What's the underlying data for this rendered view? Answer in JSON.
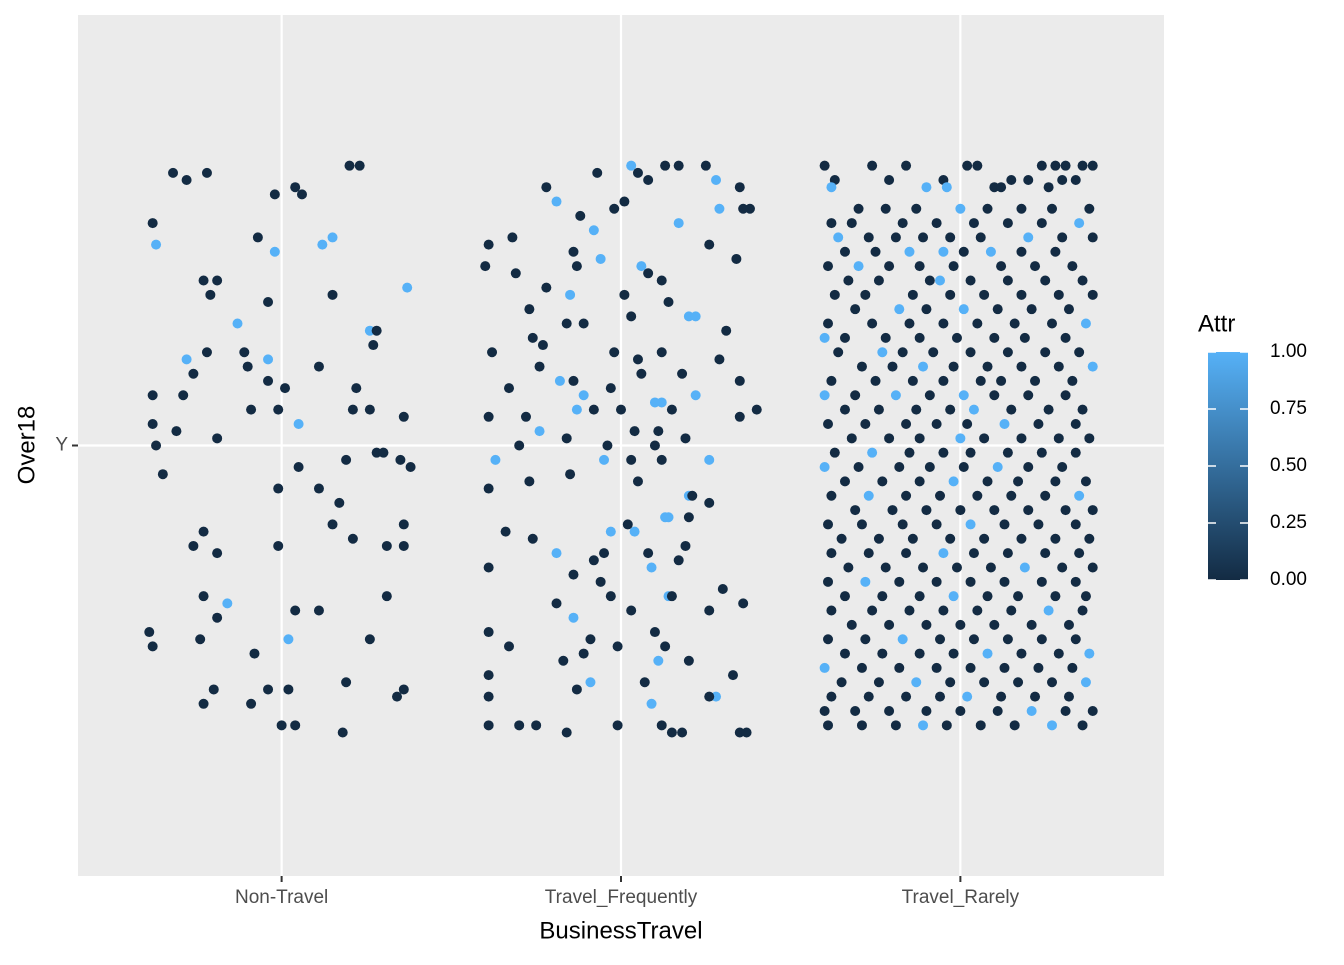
{
  "chart_data": {
    "type": "scatter",
    "x_label": "BusinessTravel",
    "y_label": "Over18",
    "xlim": [
      0.4,
      3.6
    ],
    "ylim": [
      0.4,
      1.6
    ],
    "xticks": [
      {
        "value": 1,
        "label": "Non-Travel"
      },
      {
        "value": 2,
        "label": "Travel_Frequently"
      },
      {
        "value": 3,
        "label": "Travel_Rarely"
      }
    ],
    "yticks": [
      {
        "value": 1,
        "label": "Y"
      }
    ],
    "grid": true,
    "legend": {
      "title": "Attr",
      "position": "right",
      "limits": [
        0,
        1
      ],
      "low_color": "#132B43",
      "high_color": "#56B1F7",
      "ticks": [
        {
          "value": 0,
          "label": "0.00"
        },
        {
          "value": 0.25,
          "label": "0.25"
        },
        {
          "value": 0.5,
          "label": "0.50"
        },
        {
          "value": 0.75,
          "label": "0.75"
        },
        {
          "value": 1,
          "label": "1.00"
        }
      ]
    },
    "x": [
      0.68,
      0.72,
      0.78,
      1.2,
      1.23,
      0.98,
      1.04,
      1.06,
      0.62,
      0.63,
      0.93,
      0.98,
      1.12,
      1.15,
      0.77,
      0.81,
      0.79,
      1.15,
      1.37,
      0.96,
      0.87,
      1.26,
      1.28,
      0.72,
      0.78,
      0.89,
      0.96,
      0.9,
      1.11,
      1.27,
      0.74,
      0.96,
      0.62,
      0.71,
      1.01,
      1.22,
      0.62,
      0.91,
      0.99,
      1.05,
      1.21,
      1.26,
      1.36,
      0.69,
      0.63,
      0.81,
      0.65,
      1.28,
      1.3,
      1.35,
      1.38,
      1.05,
      1.19,
      0.99,
      1.11,
      1.17,
      1.15,
      1.21,
      0.77,
      0.74,
      0.81,
      0.99,
      1.36,
      1.31,
      1.36,
      1.31,
      0.77,
      0.84,
      1.04,
      1.11,
      0.61,
      0.62,
      0.76,
      0.81,
      1.02,
      1.26,
      0.92,
      1.19,
      0.8,
      0.96,
      1.02,
      1.34,
      1.36,
      0.77,
      0.91,
      1.0,
      1.04,
      1.18,
      1.81,
      1.92,
      1.94,
      1.85,
      2.03,
      2.28,
      2.29,
      2.17,
      2.06,
      2.2,
      2.22,
      1.82,
      1.89,
      1.87,
      2.12,
      2.1,
      2.22,
      1.76,
      1.95,
      2.26,
      1.63,
      2.2,
      2.13,
      2.14,
      2.04,
      1.97,
      1.81,
      2.09,
      2.14,
      2.11,
      1.91,
      2.09,
      2.28,
      1.86,
      1.78,
      1.93,
      2.13,
      2.17,
      2.25,
      2.05,
      2.08,
      2.35,
      1.88,
      1.98,
      2.01,
      2.38,
      2.36,
      1.61,
      1.68,
      1.6,
      1.69,
      1.86,
      1.87,
      2.26,
      2.34,
      2.08,
      2.12,
      1.78,
      2.01,
      1.73,
      1.84,
      1.89,
      2.03,
      2.14,
      2.31,
      1.74,
      1.77,
      1.62,
      1.98,
      2.12,
      2.05,
      2.29,
      1.76,
      2.06,
      2.18,
      1.67,
      1.86,
      1.97,
      2.35,
      2.4,
      2.15,
      2.0,
      1.92,
      1.61,
      1.72,
      2.04,
      2.11,
      2.19,
      2.35,
      1.7,
      1.84,
      2.1,
      1.96,
      2.03,
      2.12,
      1.61,
      1.73,
      1.85,
      2.05,
      2.21,
      2.26,
      1.66,
      1.74,
      2.02,
      2.2,
      1.61,
      1.92,
      1.95,
      2.08,
      2.17,
      2.19,
      1.86,
      1.94,
      2.15,
      2.3,
      2.36,
      1.81,
      1.97,
      2.03,
      2.26,
      1.61,
      1.67,
      1.91,
      1.99,
      2.1,
      2.13,
      1.83,
      1.89,
      2.2,
      2.33,
      1.61,
      1.61,
      1.87,
      2.07,
      2.26,
      1.61,
      1.7,
      1.75,
      1.84,
      1.99,
      2.12,
      2.15,
      2.18,
      2.35,
      2.37,
      2.6,
      2.74,
      2.84,
      3.02,
      3.05,
      3.24,
      3.28,
      3.31,
      3.36,
      3.39,
      2.63,
      2.79,
      2.95,
      3.15,
      3.2,
      3.3,
      3.34,
      2.62,
      2.9,
      2.96,
      3.1,
      3.12,
      3.26,
      2.7,
      2.78,
      2.87,
      3.0,
      3.08,
      3.18,
      3.27,
      3.38,
      2.62,
      2.68,
      2.83,
      2.93,
      3.04,
      3.14,
      3.24,
      3.35,
      2.64,
      2.73,
      2.81,
      2.89,
      2.97,
      3.06,
      3.2,
      3.3,
      3.39,
      2.66,
      2.75,
      2.85,
      2.95,
      3.01,
      3.09,
      3.18,
      3.28,
      2.61,
      2.7,
      2.79,
      2.88,
      2.98,
      3.12,
      3.22,
      3.33,
      2.67,
      2.76,
      2.91,
      2.94,
      3.03,
      3.14,
      3.25,
      3.36,
      2.63,
      2.72,
      2.86,
      2.97,
      3.07,
      3.18,
      3.29,
      3.39,
      2.69,
      2.82,
      2.9,
      3.01,
      3.11,
      3.21,
      3.32,
      2.61,
      2.74,
      2.85,
      2.95,
      3.05,
      3.16,
      3.27,
      3.37,
      2.6,
      2.66,
      2.78,
      2.88,
      2.99,
      3.1,
      3.19,
      3.31,
      2.64,
      2.77,
      2.83,
      2.92,
      3.03,
      3.14,
      3.25,
      3.35,
      2.71,
      2.8,
      2.89,
      2.98,
      3.08,
      3.18,
      3.29,
      3.39,
      2.62,
      2.75,
      2.86,
      2.95,
      3.06,
      3.12,
      3.22,
      3.33,
      2.6,
      2.69,
      2.81,
      2.91,
      3.01,
      3.1,
      3.2,
      3.31,
      2.66,
      2.76,
      2.87,
      2.97,
      3.04,
      3.15,
      3.26,
      3.36,
      2.61,
      2.72,
      2.84,
      2.93,
      3.02,
      3.13,
      3.23,
      3.34,
      2.68,
      2.79,
      2.88,
      3.0,
      3.07,
      3.18,
      3.29,
      3.38,
      2.63,
      2.74,
      2.85,
      2.95,
      3.03,
      3.14,
      3.24,
      3.34,
      2.6,
      2.7,
      2.82,
      2.91,
      3.01,
      3.11,
      3.2,
      3.3,
      2.66,
      2.77,
      2.88,
      2.98,
      3.08,
      3.17,
      3.28,
      3.37,
      2.62,
      2.73,
      2.84,
      2.94,
      3.05,
      3.15,
      3.25,
      3.35,
      2.69,
      2.8,
      2.9,
      3.0,
      3.1,
      3.2,
      3.31,
      3.39,
      2.61,
      2.71,
      2.83,
      2.93,
      3.03,
      3.13,
      3.23,
      3.34,
      2.65,
      2.76,
      2.86,
      2.97,
      3.07,
      3.18,
      3.28,
      3.38,
      2.62,
      2.73,
      2.84,
      2.95,
      3.04,
      3.14,
      3.25,
      3.35,
      2.67,
      2.78,
      2.89,
      2.99,
      3.09,
      3.19,
      3.3,
      3.39,
      2.61,
      2.72,
      2.82,
      2.93,
      3.03,
      3.13,
      3.24,
      3.34,
      2.66,
      2.77,
      2.88,
      2.98,
      3.08,
      3.17,
      3.28,
      3.37,
      2.62,
      2.74,
      2.85,
      2.95,
      3.05,
      3.15,
      3.26,
      3.36,
      2.68,
      2.79,
      2.9,
      3.0,
      3.1,
      3.21,
      3.32,
      2.61,
      2.72,
      2.83,
      2.94,
      3.04,
      3.14,
      3.24,
      3.34,
      2.66,
      2.77,
      2.88,
      2.98,
      3.08,
      3.18,
      3.29,
      3.38,
      2.6,
      2.71,
      2.82,
      2.93,
      3.03,
      3.13,
      3.23,
      3.33,
      2.65,
      2.76,
      2.87,
      2.97,
      3.07,
      3.17,
      3.27,
      3.37,
      2.62,
      2.73,
      2.84,
      2.94,
      3.02,
      3.12,
      3.22,
      3.32,
      2.6,
      2.69,
      2.79,
      2.9,
      3.0,
      3.11,
      3.21,
      3.31,
      3.39,
      2.61,
      2.71,
      2.81,
      2.89,
      2.96,
      3.06,
      3.16,
      3.27,
      3.36
    ],
    "y": [
      1.38,
      1.37,
      1.38,
      1.39,
      1.39,
      1.35,
      1.36,
      1.35,
      1.31,
      1.28,
      1.29,
      1.27,
      1.28,
      1.29,
      1.23,
      1.23,
      1.21,
      1.21,
      1.22,
      1.2,
      1.17,
      1.16,
      1.16,
      1.12,
      1.13,
      1.13,
      1.12,
      1.11,
      1.11,
      1.14,
      1.1,
      1.09,
      1.07,
      1.07,
      1.08,
      1.08,
      1.03,
      1.05,
      1.05,
      1.03,
      1.05,
      1.05,
      1.04,
      1.02,
      1.0,
      1.01,
      0.96,
      0.99,
      0.99,
      0.98,
      0.97,
      0.97,
      0.98,
      0.94,
      0.94,
      0.92,
      0.89,
      0.87,
      0.88,
      0.86,
      0.85,
      0.86,
      0.89,
      0.86,
      0.86,
      0.79,
      0.79,
      0.78,
      0.77,
      0.77,
      0.74,
      0.72,
      0.73,
      0.76,
      0.73,
      0.73,
      0.71,
      0.67,
      0.66,
      0.66,
      0.66,
      0.65,
      0.66,
      0.64,
      0.64,
      0.61,
      0.61,
      0.6,
      1.34,
      1.3,
      1.26,
      1.21,
      1.39,
      1.37,
      1.33,
      1.31,
      1.25,
      1.18,
      1.18,
      1.09,
      1.07,
      1.05,
      1.06,
      1.06,
      1.07,
      1.02,
      0.98,
      0.98,
      0.98,
      0.93,
      0.9,
      0.9,
      0.88,
      0.88,
      0.85,
      0.83,
      0.79,
      0.7,
      0.67,
      0.64,
      0.65,
      0.76,
      1.36,
      1.38,
      1.39,
      1.39,
      1.39,
      1.38,
      1.37,
      1.36,
      1.32,
      1.33,
      1.34,
      1.33,
      1.33,
      1.28,
      1.29,
      1.25,
      1.24,
      1.27,
      1.25,
      1.28,
      1.26,
      1.24,
      1.23,
      1.22,
      1.21,
      1.19,
      1.17,
      1.17,
      1.18,
      1.2,
      1.16,
      1.15,
      1.14,
      1.13,
      1.13,
      1.13,
      1.12,
      1.12,
      1.11,
      1.1,
      1.1,
      1.08,
      1.09,
      1.08,
      1.09,
      1.05,
      1.05,
      1.05,
      1.05,
      1.04,
      1.04,
      1.02,
      1.02,
      1.01,
      1.04,
      1.0,
      1.01,
      1.0,
      1.0,
      0.98,
      0.98,
      0.94,
      0.95,
      0.96,
      0.95,
      0.93,
      0.92,
      0.88,
      0.87,
      0.89,
      0.9,
      0.83,
      0.84,
      0.85,
      0.85,
      0.84,
      0.86,
      0.82,
      0.81,
      0.79,
      0.8,
      0.78,
      0.78,
      0.79,
      0.77,
      0.77,
      0.74,
      0.72,
      0.73,
      0.72,
      0.74,
      0.72,
      0.7,
      0.71,
      0.7,
      0.68,
      0.68,
      0.65,
      0.66,
      0.67,
      0.65,
      0.61,
      0.61,
      0.61,
      0.6,
      0.61,
      0.61,
      0.6,
      0.6,
      0.6,
      0.6,
      1.39,
      1.39,
      1.39,
      1.39,
      1.39,
      1.39,
      1.39,
      1.39,
      1.39,
      1.39,
      1.37,
      1.37,
      1.37,
      1.37,
      1.37,
      1.37,
      1.37,
      1.36,
      1.36,
      1.36,
      1.36,
      1.36,
      1.36,
      1.33,
      1.33,
      1.33,
      1.33,
      1.33,
      1.33,
      1.33,
      1.33,
      1.31,
      1.31,
      1.31,
      1.31,
      1.31,
      1.31,
      1.31,
      1.31,
      1.29,
      1.29,
      1.29,
      1.29,
      1.29,
      1.29,
      1.29,
      1.29,
      1.29,
      1.27,
      1.27,
      1.27,
      1.27,
      1.27,
      1.27,
      1.27,
      1.27,
      1.25,
      1.25,
      1.25,
      1.25,
      1.25,
      1.25,
      1.25,
      1.25,
      1.23,
      1.23,
      1.23,
      1.23,
      1.23,
      1.23,
      1.23,
      1.23,
      1.21,
      1.21,
      1.21,
      1.21,
      1.21,
      1.21,
      1.21,
      1.21,
      1.19,
      1.19,
      1.19,
      1.19,
      1.19,
      1.19,
      1.19,
      1.17,
      1.17,
      1.17,
      1.17,
      1.17,
      1.17,
      1.17,
      1.17,
      1.15,
      1.15,
      1.15,
      1.15,
      1.15,
      1.15,
      1.15,
      1.15,
      1.13,
      1.13,
      1.13,
      1.13,
      1.13,
      1.13,
      1.13,
      1.13,
      1.11,
      1.11,
      1.11,
      1.11,
      1.11,
      1.11,
      1.11,
      1.11,
      1.09,
      1.09,
      1.09,
      1.09,
      1.09,
      1.09,
      1.09,
      1.09,
      1.07,
      1.07,
      1.07,
      1.07,
      1.07,
      1.07,
      1.07,
      1.07,
      1.05,
      1.05,
      1.05,
      1.05,
      1.05,
      1.05,
      1.05,
      1.05,
      1.03,
      1.03,
      1.03,
      1.03,
      1.03,
      1.03,
      1.03,
      1.03,
      1.01,
      1.01,
      1.01,
      1.01,
      1.01,
      1.01,
      1.01,
      1.01,
      0.99,
      0.99,
      0.99,
      0.99,
      0.99,
      0.99,
      0.99,
      0.99,
      0.97,
      0.97,
      0.97,
      0.97,
      0.97,
      0.97,
      0.97,
      0.97,
      0.95,
      0.95,
      0.95,
      0.95,
      0.95,
      0.95,
      0.95,
      0.95,
      0.93,
      0.93,
      0.93,
      0.93,
      0.93,
      0.93,
      0.93,
      0.93,
      0.91,
      0.91,
      0.91,
      0.91,
      0.91,
      0.91,
      0.91,
      0.91,
      0.89,
      0.89,
      0.89,
      0.89,
      0.89,
      0.89,
      0.89,
      0.89,
      0.87,
      0.87,
      0.87,
      0.87,
      0.87,
      0.87,
      0.87,
      0.87,
      0.85,
      0.85,
      0.85,
      0.85,
      0.85,
      0.85,
      0.85,
      0.85,
      0.83,
      0.83,
      0.83,
      0.83,
      0.83,
      0.83,
      0.83,
      0.83,
      0.81,
      0.81,
      0.81,
      0.81,
      0.81,
      0.81,
      0.81,
      0.81,
      0.79,
      0.79,
      0.79,
      0.79,
      0.79,
      0.79,
      0.79,
      0.79,
      0.77,
      0.77,
      0.77,
      0.77,
      0.77,
      0.77,
      0.77,
      0.77,
      0.75,
      0.75,
      0.75,
      0.75,
      0.75,
      0.75,
      0.75,
      0.73,
      0.73,
      0.73,
      0.73,
      0.73,
      0.73,
      0.73,
      0.73,
      0.71,
      0.71,
      0.71,
      0.71,
      0.71,
      0.71,
      0.71,
      0.71,
      0.69,
      0.69,
      0.69,
      0.69,
      0.69,
      0.69,
      0.69,
      0.69,
      0.67,
      0.67,
      0.67,
      0.67,
      0.67,
      0.67,
      0.67,
      0.67,
      0.65,
      0.65,
      0.65,
      0.65,
      0.65,
      0.65,
      0.65,
      0.65,
      0.63,
      0.63,
      0.63,
      0.63,
      0.63,
      0.63,
      0.63,
      0.63,
      0.63,
      0.61,
      0.61,
      0.61,
      0.61,
      0.61,
      0.61,
      0.61,
      0.61,
      0.61
    ],
    "attr": [
      0,
      0,
      0,
      0,
      0,
      0,
      0,
      0,
      0,
      1,
      0,
      1,
      1,
      1,
      0,
      0,
      0,
      0,
      1,
      0,
      1,
      1,
      0,
      1,
      0,
      0,
      1,
      0,
      0,
      0,
      0,
      0,
      0,
      0,
      0,
      0,
      0,
      0,
      0,
      1,
      0,
      0,
      0,
      0,
      0,
      0,
      0,
      0,
      0,
      0,
      0,
      0,
      0,
      0,
      0,
      0,
      0,
      0,
      0,
      0,
      0,
      0,
      0,
      0,
      0,
      0,
      0,
      1,
      0,
      0,
      0,
      0,
      0,
      0,
      1,
      0,
      0,
      0,
      0,
      0,
      0,
      0,
      0,
      0,
      0,
      0,
      0,
      0,
      1,
      1,
      1,
      1,
      1,
      1,
      1,
      1,
      1,
      1,
      1,
      1,
      1,
      1,
      1,
      1,
      1,
      1,
      1,
      1,
      1,
      1,
      1,
      1,
      1,
      1,
      1,
      1,
      1,
      1,
      1,
      1,
      1,
      1,
      0,
      0,
      0,
      0,
      0,
      0,
      0,
      0,
      0,
      0,
      0,
      0,
      0,
      0,
      0,
      0,
      0,
      0,
      0,
      0,
      0,
      0,
      0,
      0,
      0,
      0,
      0,
      0,
      0,
      0,
      0,
      0,
      0,
      0,
      0,
      0,
      0,
      0,
      0,
      0,
      0,
      0,
      0,
      0,
      0,
      0,
      0,
      0,
      0,
      0,
      0,
      0,
      0,
      0,
      0,
      0,
      0,
      0,
      0,
      0,
      0,
      0,
      0,
      0,
      0,
      0,
      0,
      0,
      0,
      0,
      0,
      0,
      0,
      0,
      0,
      0,
      0,
      0,
      0,
      0,
      0,
      0,
      0,
      0,
      0,
      0,
      0,
      0,
      0,
      0,
      0,
      0,
      0,
      0,
      0,
      0,
      0,
      0,
      0,
      0,
      0,
      0,
      0,
      0,
      0,
      0,
      0,
      0,
      0,
      0,
      0,
      0,
      0,
      0,
      0,
      0,
      0,
      0,
      0,
      0,
      0,
      0,
      0,
      0,
      0,
      0,
      0,
      0,
      1,
      1,
      1,
      0,
      0,
      0,
      0,
      0,
      0,
      1,
      0,
      0,
      0,
      0,
      0,
      0,
      0,
      0,
      0,
      0,
      0,
      1,
      1,
      0,
      0,
      0,
      0,
      0,
      1,
      0,
      0,
      0,
      0,
      1,
      1,
      0,
      1,
      0,
      0,
      0,
      1,
      0,
      0,
      0,
      0,
      0,
      0,
      0,
      0,
      0,
      1,
      0,
      0,
      0,
      0,
      0,
      0,
      0,
      0,
      0,
      0,
      0,
      0,
      0,
      1,
      0,
      1,
      0,
      0,
      0,
      0,
      0,
      0,
      0,
      0,
      0,
      0,
      1,
      1,
      0,
      0,
      0,
      0,
      0,
      0,
      0,
      0,
      1,
      0,
      0,
      0,
      0,
      0,
      0,
      0,
      0,
      1,
      0,
      0,
      0,
      0,
      1,
      0,
      0,
      0,
      0,
      0,
      0,
      0,
      0,
      1,
      0,
      1,
      0,
      1,
      0,
      0,
      0,
      0,
      0,
      0,
      0,
      1,
      0,
      0,
      0,
      0,
      0,
      0,
      0,
      0,
      1,
      0,
      0,
      0,
      0,
      0,
      1,
      0,
      0,
      0,
      0,
      0,
      1,
      0,
      0,
      0,
      0,
      0,
      0,
      1,
      0,
      0,
      0,
      0,
      1,
      0,
      0,
      0,
      0,
      0,
      1,
      0,
      0,
      0,
      0,
      0,
      1,
      0,
      0,
      0,
      0,
      0,
      1,
      0,
      0,
      0,
      0,
      0,
      0,
      0,
      0,
      0,
      0,
      0,
      0,
      1,
      0,
      0,
      0,
      0,
      0,
      0,
      0,
      0,
      0,
      0,
      0,
      0,
      0,
      0,
      1,
      0,
      0,
      0,
      0,
      0,
      0,
      0,
      0,
      0,
      1,
      0,
      0,
      0,
      1,
      0,
      0,
      0,
      0,
      0,
      0,
      0,
      0,
      0,
      1,
      0,
      0,
      0,
      0,
      0,
      0,
      0,
      0,
      0,
      0,
      1,
      0,
      0,
      0,
      0,
      0,
      0,
      0,
      0,
      0,
      0,
      1,
      0,
      0,
      0,
      0,
      0,
      0,
      0,
      0,
      0,
      1,
      0,
      0,
      1,
      1,
      0,
      0,
      0,
      0,
      0,
      0,
      0,
      0,
      0,
      1,
      0,
      0,
      0,
      0,
      1,
      0,
      0,
      0,
      0,
      1,
      0,
      0,
      0,
      0,
      0,
      0,
      0,
      0,
      0,
      1,
      0,
      0,
      0,
      0,
      0,
      1,
      0,
      0,
      0,
      1,
      0
    ]
  }
}
